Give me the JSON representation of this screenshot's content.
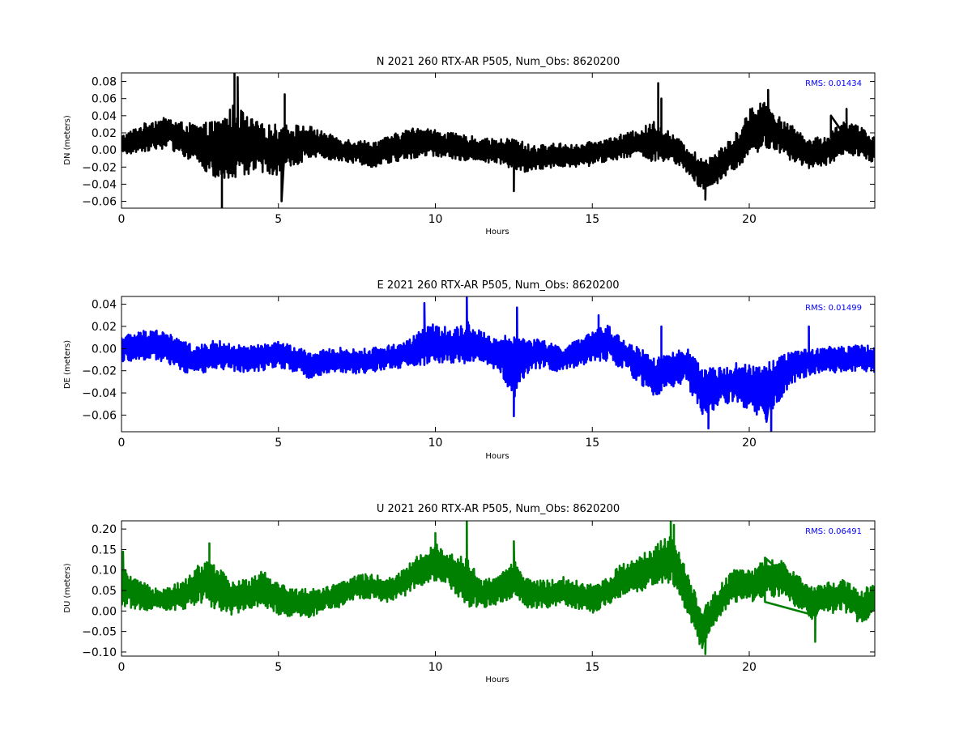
{
  "chart_data": [
    {
      "type": "line",
      "title": "N 2021 260 RTX-AR  P505, Num_Obs: 8620200",
      "xlabel": "Hours",
      "ylabel": "DN (meters)",
      "xlim": [
        0,
        24
      ],
      "ylim": [
        -0.068,
        0.09
      ],
      "xticks": [
        "0",
        "5",
        "10",
        "15",
        "20"
      ],
      "xtick_values": [
        0,
        5,
        10,
        15,
        20
      ],
      "yticks": [
        "−0.06",
        "−0.04",
        "−0.02",
        "0.00",
        "0.02",
        "0.04",
        "0.06",
        "0.08"
      ],
      "ytick_values": [
        -0.06,
        -0.04,
        -0.02,
        0.0,
        0.02,
        0.04,
        0.06,
        0.08
      ],
      "annotation": "RMS:  0.01434",
      "grid": false,
      "color": "#000000",
      "annotation_color": "#0000ff",
      "series": [
        {
          "x": [
            0,
            0.5,
            1,
            1.5,
            2,
            2.5,
            3,
            3.3,
            3.6,
            4,
            4.5,
            5,
            5.5,
            6,
            6.5,
            7,
            7.5,
            8,
            8.5,
            9,
            9.5,
            10,
            10.5,
            11,
            11.5,
            12,
            12.5,
            13,
            13.5,
            14,
            14.5,
            15,
            15.5,
            16,
            16.5,
            17,
            17.5,
            18,
            18.5,
            19,
            19.5,
            20,
            20.5,
            21,
            21.5,
            22,
            22.5,
            23,
            23.5,
            24
          ],
          "center": [
            0.005,
            0.012,
            0.018,
            0.02,
            0.012,
            0.005,
            0.0,
            0.002,
            0.01,
            0.005,
            0.002,
            0.0,
            0.005,
            0.01,
            0.005,
            0.0,
            -0.002,
            -0.005,
            0.0,
            0.005,
            0.01,
            0.008,
            0.005,
            0.002,
            0.0,
            -0.002,
            -0.005,
            -0.01,
            -0.008,
            -0.005,
            -0.008,
            -0.004,
            0.0,
            0.005,
            0.008,
            0.01,
            0.002,
            -0.01,
            -0.03,
            -0.02,
            -0.005,
            0.02,
            0.03,
            0.015,
            0.005,
            -0.005,
            0.0,
            0.015,
            0.01,
            0.0
          ],
          "amp": [
            0.012,
            0.015,
            0.018,
            0.018,
            0.02,
            0.025,
            0.035,
            0.04,
            0.045,
            0.035,
            0.028,
            0.03,
            0.025,
            0.018,
            0.015,
            0.014,
            0.014,
            0.015,
            0.016,
            0.018,
            0.018,
            0.016,
            0.015,
            0.015,
            0.014,
            0.014,
            0.02,
            0.016,
            0.014,
            0.014,
            0.014,
            0.014,
            0.014,
            0.014,
            0.016,
            0.025,
            0.018,
            0.016,
            0.02,
            0.02,
            0.02,
            0.028,
            0.03,
            0.022,
            0.02,
            0.018,
            0.018,
            0.02,
            0.018,
            0.015
          ],
          "spikes": [
            [
              3.2,
              -0.068
            ],
            [
              3.6,
              0.09
            ],
            [
              3.7,
              0.085
            ],
            [
              5.2,
              0.065
            ],
            [
              5.1,
              -0.06
            ],
            [
              12.5,
              -0.048
            ],
            [
              17.1,
              0.078
            ],
            [
              17.2,
              0.06
            ],
            [
              18.6,
              -0.058
            ],
            [
              20.6,
              0.07
            ],
            [
              23.1,
              0.048
            ],
            [
              22.6,
              0.04
            ]
          ]
        }
      ]
    },
    {
      "type": "line",
      "title": "E 2021 260 RTX-AR  P505, Num_Obs: 8620200",
      "xlabel": "Hours",
      "ylabel": "DE (meters)",
      "xlim": [
        0,
        24
      ],
      "ylim": [
        -0.075,
        0.047
      ],
      "xticks": [
        "0",
        "5",
        "10",
        "15",
        "20"
      ],
      "xtick_values": [
        0,
        5,
        10,
        15,
        20
      ],
      "yticks": [
        "−0.06",
        "−0.04",
        "−0.02",
        "0.00",
        "0.02",
        "0.04"
      ],
      "ytick_values": [
        -0.06,
        -0.04,
        -0.02,
        0.0,
        0.02,
        0.04
      ],
      "annotation": "RMS:  0.01499",
      "grid": false,
      "color": "#0000ff",
      "annotation_color": "#0000ff",
      "series": [
        {
          "x": [
            0,
            0.5,
            1,
            1.5,
            2,
            2.5,
            3,
            3.5,
            4,
            4.5,
            5,
            5.5,
            6,
            6.5,
            7,
            7.5,
            8,
            8.5,
            9,
            9.5,
            10,
            10.5,
            11,
            11.5,
            12,
            12.5,
            13,
            13.5,
            14,
            14.5,
            15,
            15.5,
            16,
            16.5,
            17,
            17.5,
            18,
            18.5,
            19,
            19.5,
            20,
            20.5,
            21,
            21.5,
            22,
            22.5,
            23,
            23.5,
            24
          ],
          "center": [
            0.0,
            0.002,
            0.005,
            0.0,
            -0.008,
            -0.01,
            -0.005,
            -0.008,
            -0.01,
            -0.008,
            -0.005,
            -0.01,
            -0.015,
            -0.012,
            -0.01,
            -0.012,
            -0.01,
            -0.008,
            -0.005,
            0.0,
            0.005,
            0.002,
            0.005,
            0.0,
            -0.005,
            -0.015,
            -0.005,
            -0.005,
            -0.01,
            -0.005,
            0.002,
            0.005,
            -0.005,
            -0.015,
            -0.025,
            -0.02,
            -0.015,
            -0.04,
            -0.035,
            -0.03,
            -0.035,
            -0.04,
            -0.025,
            -0.015,
            -0.012,
            -0.01,
            -0.01,
            -0.008,
            -0.01
          ],
          "amp": [
            0.012,
            0.013,
            0.014,
            0.014,
            0.014,
            0.013,
            0.013,
            0.012,
            0.012,
            0.012,
            0.012,
            0.012,
            0.012,
            0.011,
            0.011,
            0.011,
            0.011,
            0.011,
            0.012,
            0.016,
            0.018,
            0.016,
            0.02,
            0.015,
            0.014,
            0.03,
            0.015,
            0.012,
            0.012,
            0.012,
            0.014,
            0.016,
            0.014,
            0.016,
            0.018,
            0.016,
            0.016,
            0.022,
            0.018,
            0.018,
            0.02,
            0.025,
            0.02,
            0.014,
            0.012,
            0.012,
            0.012,
            0.012,
            0.012
          ],
          "spikes": [
            [
              9.65,
              0.041
            ],
            [
              11.0,
              0.046
            ],
            [
              12.5,
              -0.061
            ],
            [
              12.6,
              0.037
            ],
            [
              15.2,
              0.03
            ],
            [
              17.2,
              0.02
            ],
            [
              18.7,
              -0.072
            ],
            [
              20.7,
              -0.075
            ],
            [
              20.55,
              -0.066
            ],
            [
              21.9,
              0.02
            ]
          ]
        }
      ]
    },
    {
      "type": "line",
      "title": "U 2021 260 RTX-AR  P505, Num_Obs: 8620200",
      "xlabel": "Hours",
      "ylabel": "DU (meters)",
      "xlim": [
        0,
        24
      ],
      "ylim": [
        -0.11,
        0.22
      ],
      "xticks": [
        "0",
        "5",
        "10",
        "15",
        "20"
      ],
      "xtick_values": [
        0,
        5,
        10,
        15,
        20
      ],
      "yticks": [
        "−0.10",
        "−0.05",
        "0.00",
        "0.05",
        "0.10",
        "0.15",
        "0.20"
      ],
      "ytick_values": [
        -0.1,
        -0.05,
        0.0,
        0.05,
        0.1,
        0.15,
        0.2
      ],
      "annotation": "RMS:  0.06491",
      "grid": false,
      "color": "#008000",
      "annotation_color": "#0000ff",
      "series": [
        {
          "x": [
            0,
            0.5,
            1,
            1.5,
            2,
            2.5,
            3,
            3.5,
            4,
            4.5,
            5,
            5.5,
            6,
            6.5,
            7,
            7.5,
            8,
            8.5,
            9,
            9.5,
            10,
            10.5,
            11,
            11.5,
            12,
            12.5,
            13,
            13.5,
            14,
            14.5,
            15,
            15.5,
            16,
            16.5,
            17,
            17.5,
            18,
            18.5,
            19,
            19.5,
            20,
            20.5,
            21,
            21.5,
            22,
            22.5,
            23,
            23.5,
            24
          ],
          "center": [
            0.06,
            0.04,
            0.03,
            0.03,
            0.04,
            0.07,
            0.06,
            0.03,
            0.04,
            0.06,
            0.03,
            0.02,
            0.02,
            0.03,
            0.04,
            0.06,
            0.06,
            0.05,
            0.07,
            0.1,
            0.12,
            0.1,
            0.07,
            0.04,
            0.05,
            0.08,
            0.04,
            0.04,
            0.05,
            0.04,
            0.03,
            0.05,
            0.08,
            0.09,
            0.11,
            0.13,
            0.05,
            -0.05,
            0.02,
            0.06,
            0.06,
            0.08,
            0.08,
            0.05,
            0.02,
            0.03,
            0.04,
            0.01,
            0.03
          ],
          "amp": [
            0.05,
            0.035,
            0.03,
            0.03,
            0.035,
            0.05,
            0.06,
            0.04,
            0.04,
            0.045,
            0.04,
            0.035,
            0.035,
            0.03,
            0.03,
            0.03,
            0.03,
            0.03,
            0.035,
            0.04,
            0.045,
            0.045,
            0.06,
            0.035,
            0.035,
            0.045,
            0.035,
            0.035,
            0.035,
            0.035,
            0.035,
            0.035,
            0.04,
            0.045,
            0.05,
            0.06,
            0.05,
            0.05,
            0.04,
            0.04,
            0.04,
            0.045,
            0.045,
            0.04,
            0.04,
            0.04,
            0.04,
            0.04,
            0.04
          ],
          "spikes": [
            [
              0.05,
              0.145
            ],
            [
              2.8,
              0.165
            ],
            [
              10.0,
              0.19
            ],
            [
              11.0,
              0.22
            ],
            [
              12.5,
              0.17
            ],
            [
              17.5,
              0.22
            ],
            [
              17.6,
              0.21
            ],
            [
              18.6,
              -0.105
            ],
            [
              18.5,
              -0.09
            ],
            [
              22.1,
              -0.075
            ],
            [
              20.5,
              0.13
            ]
          ]
        }
      ]
    }
  ]
}
